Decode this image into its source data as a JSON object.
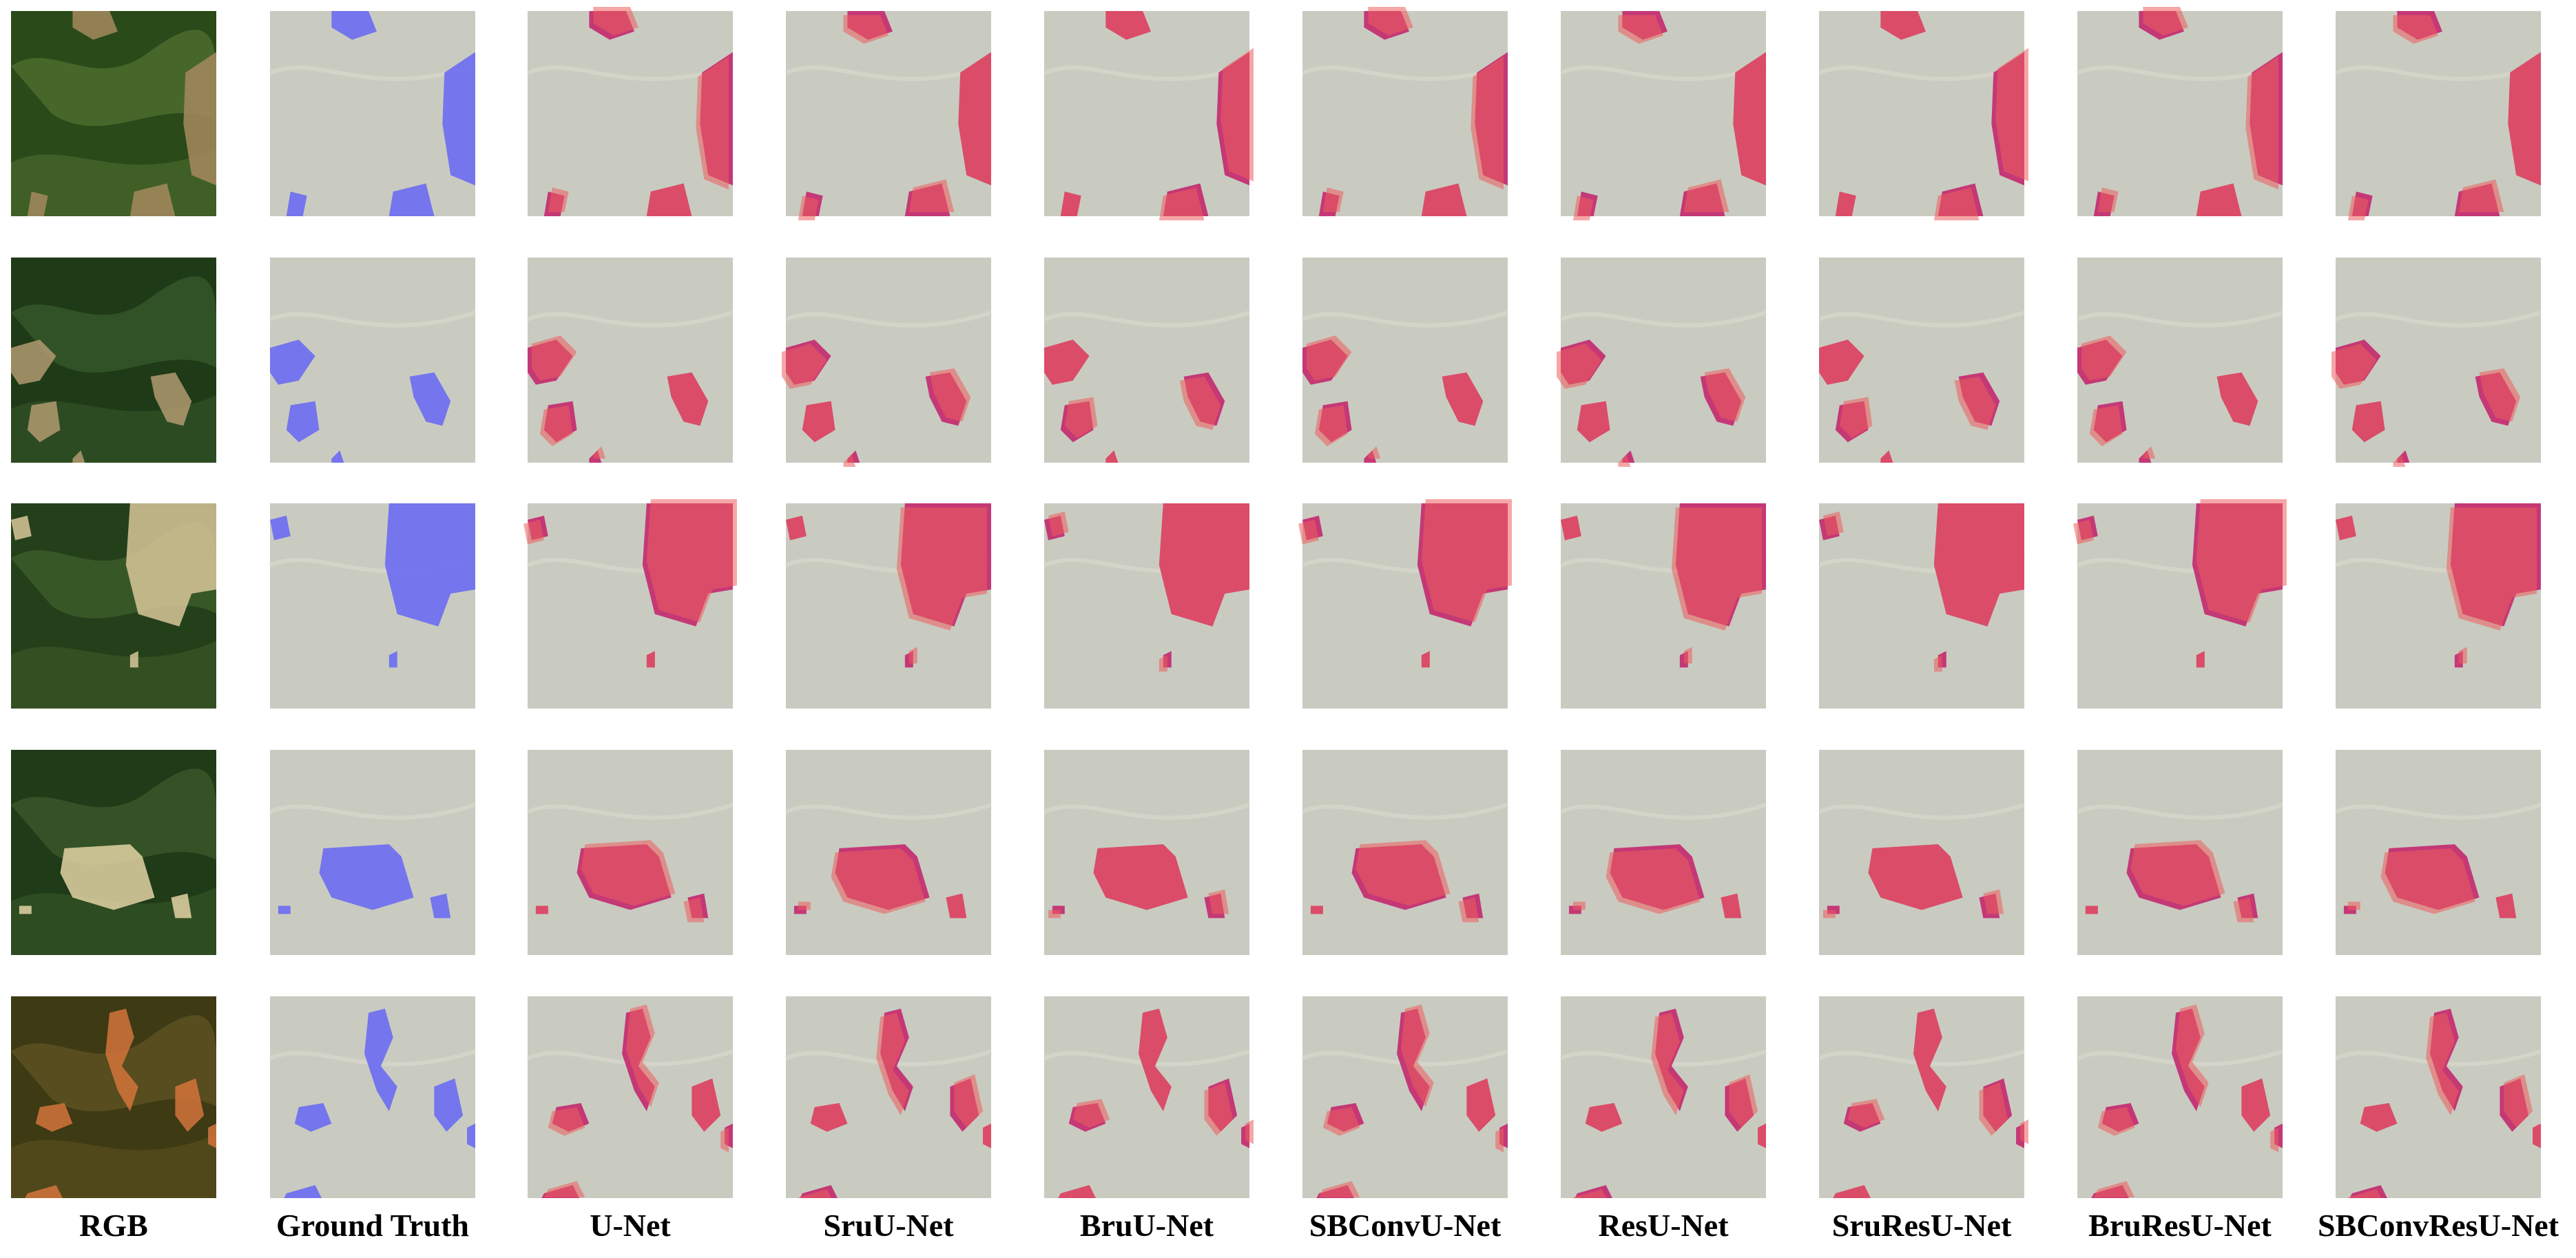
{
  "figure": {
    "columns": [
      {
        "key": "rgb",
        "label": "RGB"
      },
      {
        "key": "gt",
        "label": "Ground Truth"
      },
      {
        "key": "unet",
        "label": "U-Net"
      },
      {
        "key": "sruunet",
        "label": "SruU-Net"
      },
      {
        "key": "bruunet",
        "label": "BruU-Net"
      },
      {
        "key": "sbconvunet",
        "label": "SBConvU-Net"
      },
      {
        "key": "resunet",
        "label": "ResU-Net"
      },
      {
        "key": "sruresunet",
        "label": "SruResU-Net"
      },
      {
        "key": "bruresunet",
        "label": "BruResU-Net"
      },
      {
        "key": "sbconvresunet",
        "label": "SBConvResU-Net"
      }
    ],
    "row_count": 5,
    "colors": {
      "background": "#ffffff",
      "muted_tile": "#c9cbc1",
      "ground_truth_overlay": "#6b6cf2",
      "prediction_overlay": "#ef5d5d",
      "overlap_overlay": "#c3286e"
    }
  }
}
